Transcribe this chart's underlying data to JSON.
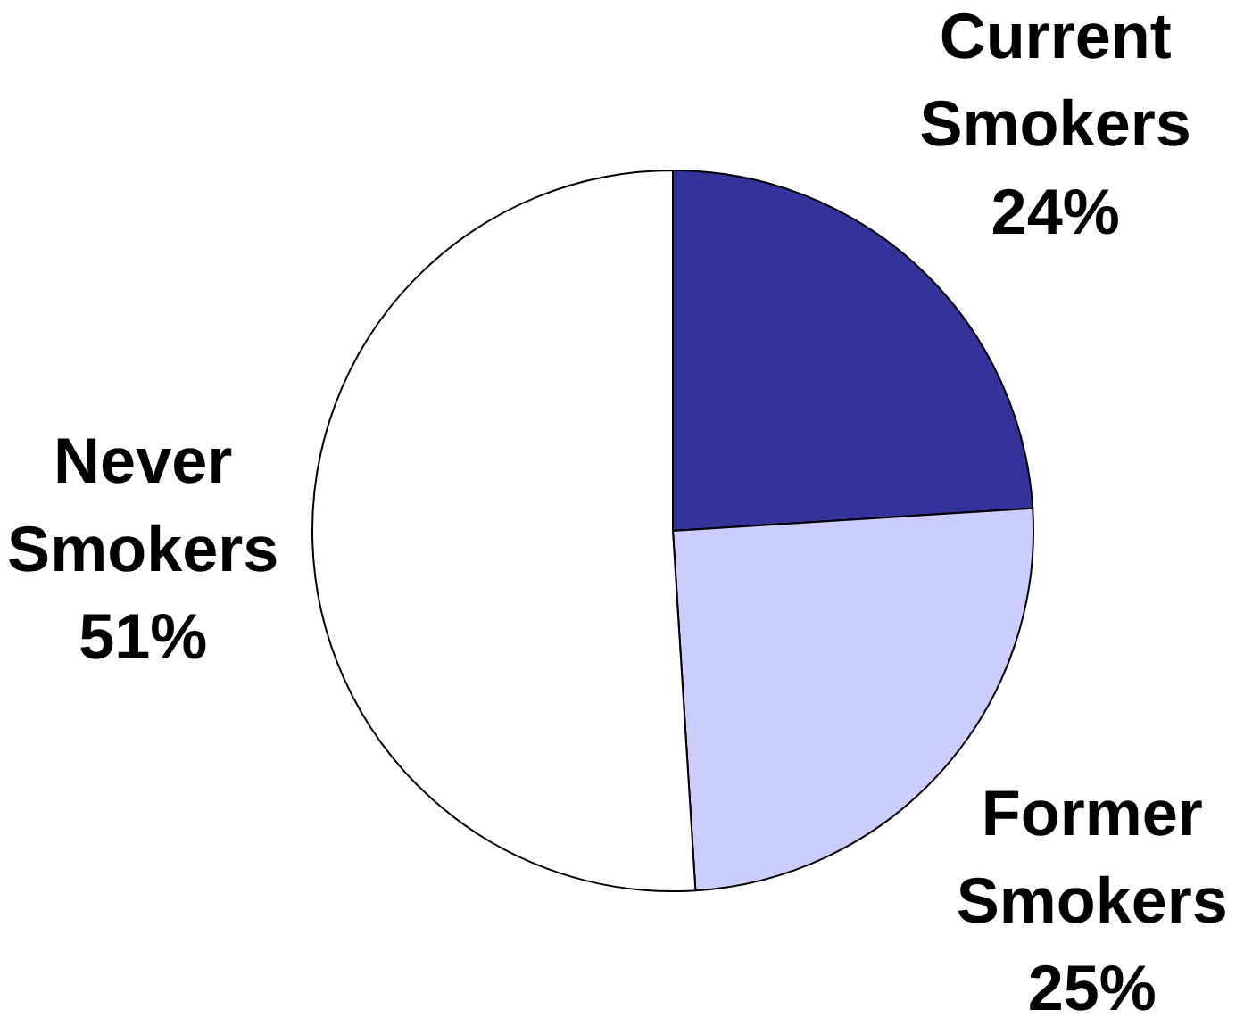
{
  "chart_data": {
    "type": "pie",
    "categories": [
      "Current Smokers",
      "Former Smokers",
      "Never Smokers"
    ],
    "values": [
      24,
      25,
      51
    ],
    "colors": [
      "#333399",
      "#ccccff",
      "#ffffff"
    ],
    "value_labels": [
      "24%",
      "25%",
      "51%"
    ]
  }
}
